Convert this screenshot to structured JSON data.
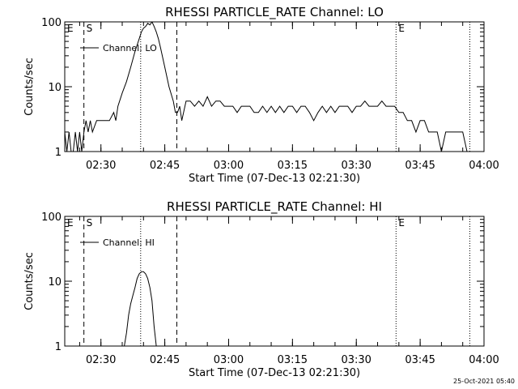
{
  "timestamp": "25-Oct-2021 05:40",
  "chart_data": [
    {
      "type": "line",
      "title": "RHESSI PARTICLE_RATE Channel: LO",
      "xlabel": "Start Time (07-Dec-13 02:21:30)",
      "ylabel": "Counts/sec",
      "legend": "Channel: LO",
      "legend_position": "top-left",
      "y_scale": "log",
      "ylim": [
        1,
        100
      ],
      "xlim": [
        "02:21:30",
        "04:00:00"
      ],
      "x_ticks": [
        "02:30",
        "02:45",
        "03:00",
        "03:15",
        "03:30",
        "03:45",
        "04:00"
      ],
      "y_ticks": [
        "1",
        "10",
        "100"
      ],
      "markers": [
        {
          "label": "E",
          "time": "02:21:30",
          "style": "none"
        },
        {
          "label": "S",
          "time": "02:26:00",
          "style": "dashed"
        },
        {
          "label": "",
          "time": "02:39:20",
          "style": "dotted"
        },
        {
          "label": "",
          "time": "02:47:50",
          "style": "dashed"
        },
        {
          "label": "E",
          "time": "03:39:20",
          "style": "dotted"
        },
        {
          "label": "",
          "time": "03:56:40",
          "style": "dotted"
        }
      ],
      "series": [
        {
          "name": "Channel: LO",
          "color": "#000000",
          "x": [
            "02:21:30",
            "02:22:00",
            "02:22:30",
            "02:23:00",
            "02:23:30",
            "02:24:00",
            "02:24:30",
            "02:25:00",
            "02:25:30",
            "02:26:00",
            "02:26:30",
            "02:27:00",
            "02:27:30",
            "02:28:00",
            "02:29:00",
            "02:30:00",
            "02:31:00",
            "02:32:00",
            "02:33:00",
            "02:33:30",
            "02:34:00",
            "02:35:00",
            "02:36:00",
            "02:37:00",
            "02:38:00",
            "02:39:00",
            "02:39:30",
            "02:40:00",
            "02:40:30",
            "02:41:00",
            "02:41:30",
            "02:42:00",
            "02:42:30",
            "02:43:00",
            "02:43:30",
            "02:44:00",
            "02:45:00",
            "02:46:00",
            "02:47:00",
            "02:47:30",
            "02:48:00",
            "02:48:30",
            "02:49:00",
            "02:50:00",
            "02:51:00",
            "02:52:00",
            "02:53:00",
            "02:54:00",
            "02:55:00",
            "02:56:00",
            "02:57:00",
            "02:58:00",
            "02:59:00",
            "03:00:00",
            "03:01:00",
            "03:02:00",
            "03:03:00",
            "03:04:00",
            "03:05:00",
            "03:06:00",
            "03:07:00",
            "03:08:00",
            "03:09:00",
            "03:10:00",
            "03:11:00",
            "03:12:00",
            "03:13:00",
            "03:14:00",
            "03:15:00",
            "03:16:00",
            "03:17:00",
            "03:18:00",
            "03:19:00",
            "03:20:00",
            "03:21:00",
            "03:22:00",
            "03:23:00",
            "03:24:00",
            "03:25:00",
            "03:26:00",
            "03:27:00",
            "03:28:00",
            "03:29:00",
            "03:30:00",
            "03:31:00",
            "03:32:00",
            "03:33:00",
            "03:34:00",
            "03:35:00",
            "03:36:00",
            "03:37:00",
            "03:38:00",
            "03:39:00",
            "03:40:00",
            "03:41:00",
            "03:42:00",
            "03:43:00",
            "03:44:00",
            "03:45:00",
            "03:46:00",
            "03:47:00",
            "03:48:00",
            "03:49:00",
            "03:50:00",
            "03:51:00",
            "03:52:00",
            "03:53:00",
            "03:54:00",
            "03:55:00",
            "03:56:00"
          ],
          "y": [
            2,
            1,
            2,
            1,
            1,
            2,
            1,
            2,
            1,
            2,
            3,
            2,
            3,
            2,
            3,
            3,
            3,
            3,
            4,
            3,
            5,
            8,
            12,
            20,
            35,
            55,
            70,
            80,
            85,
            95,
            90,
            100,
            85,
            70,
            55,
            40,
            20,
            10,
            6,
            4,
            4,
            5,
            3,
            6,
            6,
            5,
            6,
            5,
            7,
            5,
            6,
            6,
            5,
            5,
            5,
            4,
            5,
            5,
            5,
            4,
            4,
            5,
            4,
            5,
            4,
            5,
            4,
            5,
            5,
            4,
            5,
            5,
            4,
            3,
            4,
            5,
            4,
            5,
            4,
            5,
            5,
            5,
            4,
            5,
            5,
            6,
            5,
            5,
            5,
            6,
            5,
            5,
            5,
            4,
            4,
            3,
            3,
            2,
            3,
            3,
            2,
            2,
            2,
            1,
            2,
            2,
            2,
            2,
            2,
            1
          ],
          "note": ""
        }
      ]
    },
    {
      "type": "line",
      "title": "RHESSI PARTICLE_RATE Channel: HI",
      "xlabel": "Start Time (07-Dec-13 02:21:30)",
      "ylabel": "Counts/sec",
      "legend": "Channel: HI",
      "legend_position": "top-left",
      "y_scale": "log",
      "ylim": [
        1,
        100
      ],
      "xlim": [
        "02:21:30",
        "04:00:00"
      ],
      "x_ticks": [
        "02:30",
        "02:45",
        "03:00",
        "03:15",
        "03:30",
        "03:45",
        "04:00"
      ],
      "y_ticks": [
        "1",
        "10",
        "100"
      ],
      "markers": [
        {
          "label": "E",
          "time": "02:21:30",
          "style": "none"
        },
        {
          "label": "S",
          "time": "02:26:00",
          "style": "dashed"
        },
        {
          "label": "",
          "time": "02:39:20",
          "style": "dotted"
        },
        {
          "label": "",
          "time": "02:47:50",
          "style": "dashed"
        },
        {
          "label": "E",
          "time": "03:39:20",
          "style": "dotted"
        },
        {
          "label": "",
          "time": "03:56:40",
          "style": "dotted"
        }
      ],
      "series": [
        {
          "name": "Channel: HI",
          "color": "#000000",
          "x": [
            "02:35:30",
            "02:36:00",
            "02:36:30",
            "02:37:00",
            "02:37:30",
            "02:38:00",
            "02:38:30",
            "02:39:00",
            "02:39:30",
            "02:40:00",
            "02:40:30",
            "02:41:00",
            "02:41:30",
            "02:42:00",
            "02:42:30",
            "02:43:00"
          ],
          "y": [
            1,
            1.6,
            3,
            4.5,
            6,
            8,
            11,
            13,
            14,
            14,
            13,
            11,
            8,
            5,
            2,
            1
          ]
        }
      ]
    }
  ]
}
